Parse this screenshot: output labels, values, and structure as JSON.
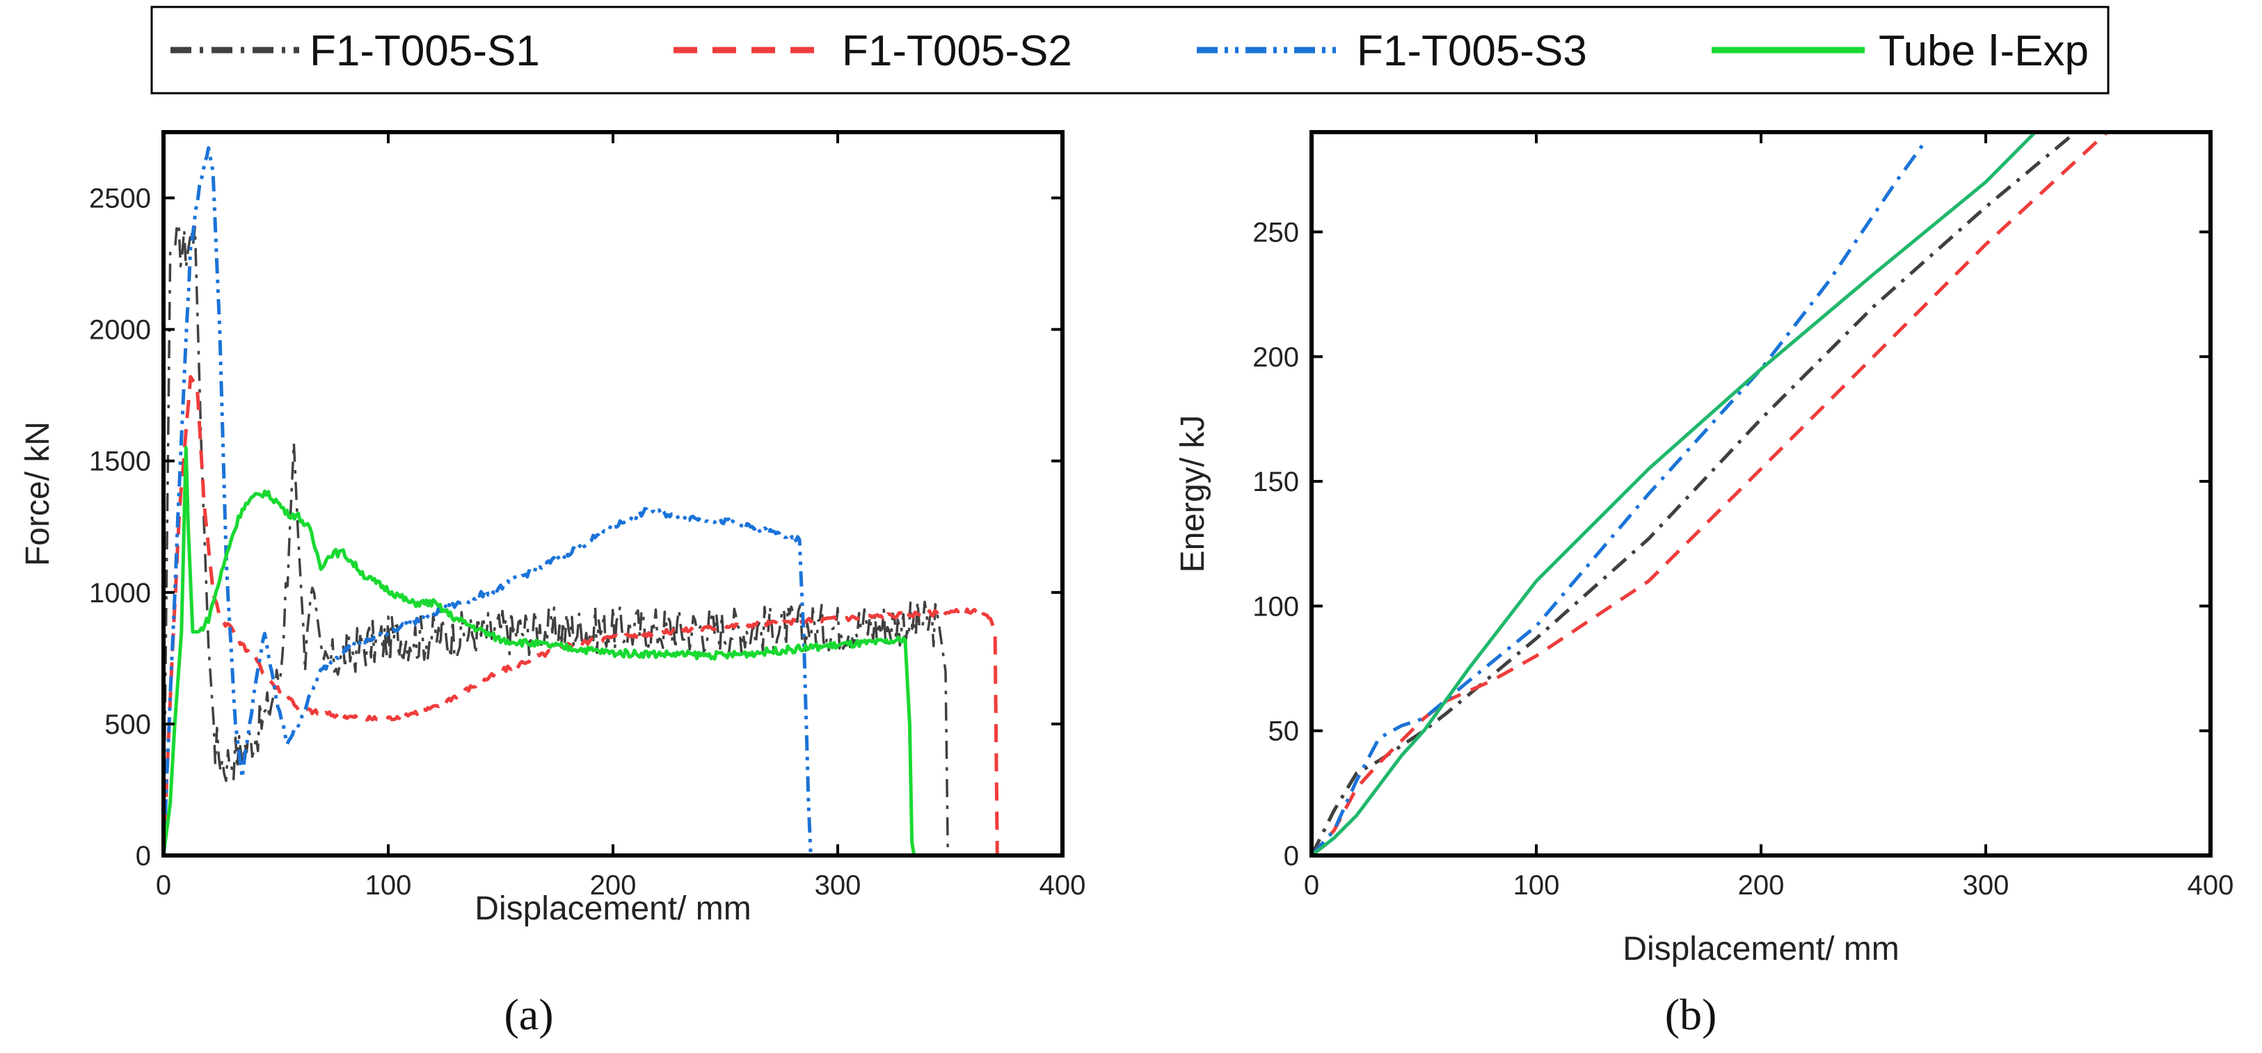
{
  "legend": [
    {
      "label": "F1-T005-S1",
      "color": "#404040",
      "dash": "dashdot"
    },
    {
      "label": "F1-T005-S2",
      "color": "#f03c3c",
      "dash": "dash"
    },
    {
      "label": "F1-T005-S3",
      "color": "#1a73d9",
      "dash": "dashdotdot"
    },
    {
      "label": "Tube Ⅰ-Exp",
      "color": "#19d931",
      "dash": "solid"
    }
  ],
  "panel_labels": {
    "a": "(a)",
    "b": "(b)"
  },
  "chart_data": [
    {
      "type": "line",
      "panel": "a",
      "xlabel": "Displacement/ mm",
      "ylabel": "Force/ kN",
      "xlim": [
        0,
        400
      ],
      "ylim": [
        0,
        2750
      ],
      "xticks": [
        0,
        100,
        200,
        300,
        400
      ],
      "yticks": [
        0,
        500,
        1000,
        1500,
        2000,
        2500
      ],
      "series": [
        {
          "name": "F1-T005-S1",
          "color": "#404040",
          "dash": "dashdot",
          "noise": 90,
          "x": [
            0,
            3,
            6,
            10,
            14,
            17,
            20,
            23,
            27,
            32,
            37,
            42,
            47,
            52,
            56,
            58,
            60,
            63,
            67,
            70,
            72,
            76,
            80,
            90,
            100,
            120,
            150,
            200,
            250,
            300,
            330,
            345,
            348,
            349,
            350
          ],
          "y": [
            0,
            2300,
            2330,
            2300,
            2390,
            1500,
            800,
            420,
            350,
            380,
            420,
            480,
            560,
            700,
            1200,
            1570,
            1200,
            750,
            1000,
            800,
            720,
            740,
            760,
            800,
            820,
            830,
            850,
            860,
            860,
            870,
            880,
            880,
            700,
            0,
            0
          ]
        },
        {
          "name": "F1-T005-S2",
          "color": "#f03c3c",
          "dash": "dash",
          "noise": 10,
          "x": [
            0,
            3,
            7,
            12,
            15,
            18,
            22,
            26,
            30,
            35,
            40,
            45,
            50,
            55,
            60,
            70,
            80,
            90,
            100,
            120,
            150,
            180,
            200,
            250,
            300,
            340,
            360,
            368,
            370,
            371
          ],
          "y": [
            0,
            600,
            1300,
            1820,
            1780,
            1350,
            1000,
            890,
            870,
            800,
            760,
            690,
            640,
            610,
            560,
            540,
            530,
            520,
            520,
            560,
            700,
            800,
            830,
            870,
            900,
            920,
            930,
            900,
            850,
            0
          ]
        },
        {
          "name": "F1-T005-S3",
          "color": "#1a73d9",
          "dash": "dashdotdot",
          "noise": 12,
          "x": [
            0,
            4,
            8,
            12,
            16,
            20,
            22,
            25,
            28,
            32,
            35,
            40,
            45,
            50,
            55,
            60,
            70,
            80,
            100,
            120,
            150,
            180,
            200,
            215,
            230,
            250,
            270,
            283,
            285,
            287,
            288
          ],
          "y": [
            0,
            800,
            1600,
            2300,
            2550,
            2690,
            2600,
            2000,
            1100,
            500,
            300,
            600,
            850,
            600,
            430,
            500,
            700,
            780,
            850,
            920,
            1020,
            1150,
            1250,
            1310,
            1290,
            1270,
            1230,
            1200,
            800,
            200,
            0
          ]
        },
        {
          "name": "Tube Ⅰ-Exp",
          "color": "#19d931",
          "dash": "solid",
          "noise": 14,
          "x": [
            0,
            3,
            5,
            8,
            10,
            11,
            13,
            16,
            20,
            25,
            30,
            35,
            40,
            45,
            50,
            55,
            60,
            65,
            70,
            75,
            80,
            90,
            100,
            110,
            120,
            130,
            150,
            200,
            250,
            300,
            320,
            330,
            332,
            333,
            334,
            340
          ],
          "y": [
            0,
            200,
            500,
            850,
            1550,
            1250,
            850,
            850,
            900,
            1050,
            1200,
            1320,
            1360,
            1380,
            1350,
            1300,
            1290,
            1240,
            1100,
            1150,
            1150,
            1060,
            1010,
            960,
            960,
            900,
            820,
            770,
            760,
            800,
            810,
            820,
            500,
            50,
            0,
            0
          ]
        }
      ]
    },
    {
      "type": "line",
      "panel": "b",
      "xlabel": "Displacement/ mm",
      "ylabel": "Energy/ kJ",
      "xlim": [
        0,
        400
      ],
      "ylim": [
        0,
        290
      ],
      "xticks": [
        0,
        100,
        200,
        300,
        400
      ],
      "yticks": [
        0,
        50,
        100,
        150,
        200,
        250
      ],
      "series": [
        {
          "name": "F1-T005-S1",
          "color": "#404040",
          "dash": "dashdot",
          "x": [
            0,
            10,
            20,
            30,
            50,
            60,
            80,
            100,
            150,
            200,
            250,
            300,
            340
          ],
          "y": [
            0,
            18,
            33,
            38,
            50,
            57,
            72,
            87,
            127,
            175,
            220,
            260,
            290
          ]
        },
        {
          "name": "F1-T005-S2",
          "color": "#f03c3c",
          "dash": "dash",
          "x": [
            0,
            10,
            20,
            30,
            50,
            60,
            80,
            100,
            150,
            200,
            250,
            300,
            354
          ],
          "y": [
            0,
            10,
            27,
            37,
            55,
            62,
            70,
            80,
            110,
            155,
            200,
            245,
            290
          ]
        },
        {
          "name": "F1-T005-S3",
          "color": "#1a73d9",
          "dash": "dashdot",
          "x": [
            0,
            10,
            20,
            30,
            40,
            50,
            70,
            100,
            150,
            200,
            230,
            260,
            272
          ],
          "y": [
            0,
            10,
            30,
            47,
            52,
            55,
            70,
            92,
            145,
            195,
            230,
            270,
            285
          ]
        },
        {
          "name": "Tube Ⅰ-Exp",
          "color": "#1fb86b",
          "dash": "solid",
          "x": [
            0,
            10,
            20,
            30,
            40,
            50,
            70,
            100,
            150,
            200,
            250,
            300,
            322
          ],
          "y": [
            0,
            7,
            16,
            28,
            40,
            50,
            75,
            110,
            155,
            195,
            233,
            270,
            290
          ]
        }
      ]
    }
  ]
}
